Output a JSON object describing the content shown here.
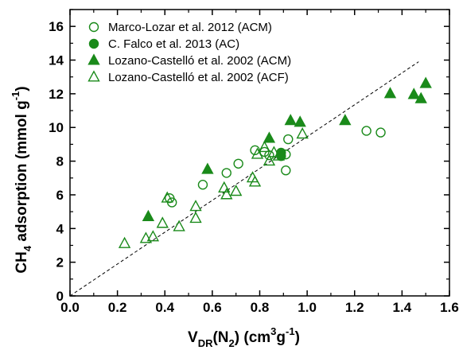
{
  "chart_data": {
    "type": "scatter",
    "title": "",
    "ylabel_parts": {
      "base": "CH",
      "sub": "4",
      "rest": " adsorption (mmol g",
      "sup": "-1",
      "end": ")"
    },
    "xlabel_parts": {
      "base": "V",
      "sub": "DR",
      "mid": "(N",
      "sub2": "2",
      "rest": ") (cm",
      "sup": "3",
      "g": "g",
      "sup2": "-1",
      "end": ")"
    },
    "xlim": [
      0.0,
      1.6
    ],
    "ylim": [
      0,
      17
    ],
    "x_ticks": [
      "0.0",
      "0.2",
      "0.4",
      "0.6",
      "0.8",
      "1.0",
      "1.2",
      "1.4",
      "1.6"
    ],
    "y_ticks": [
      "0",
      "2",
      "4",
      "6",
      "8",
      "10",
      "12",
      "14",
      "16"
    ],
    "x_tick_values": [
      0.0,
      0.2,
      0.4,
      0.6,
      0.8,
      1.0,
      1.2,
      1.4,
      1.6
    ],
    "y_tick_values": [
      0,
      2,
      4,
      6,
      8,
      10,
      12,
      14,
      16
    ],
    "grid": false,
    "legend_position": "top-left",
    "reference_line": {
      "style": "dashed",
      "x": [
        0.0,
        1.47
      ],
      "y": [
        0.0,
        13.9
      ]
    },
    "series": [
      {
        "name": "Marco-Lozar et al. 2012 (ACM)",
        "marker": "circle-open",
        "color": "#1a8a1a",
        "x": [
          0.42,
          0.43,
          0.56,
          0.66,
          0.71,
          0.78,
          0.82,
          0.84,
          0.91,
          0.91,
          0.92,
          1.25,
          1.31
        ],
        "y": [
          5.8,
          5.55,
          6.6,
          7.3,
          7.85,
          8.65,
          8.55,
          8.35,
          8.4,
          7.45,
          9.3,
          9.8,
          9.7
        ]
      },
      {
        "name": "C. Falco et al. 2013 (AC)",
        "marker": "circle-filled",
        "color": "#1a8a1a",
        "x": [
          0.89,
          0.89
        ],
        "y": [
          8.5,
          8.3
        ]
      },
      {
        "name": "Lozano-Castelló et al. 2002 (ACM)",
        "marker": "triangle-filled",
        "color": "#1a8a1a",
        "x": [
          0.33,
          0.58,
          0.84,
          0.93,
          0.97,
          1.16,
          1.35,
          1.45,
          1.48,
          1.5
        ],
        "y": [
          4.7,
          7.5,
          9.35,
          10.4,
          10.3,
          10.4,
          12.0,
          11.95,
          11.7,
          12.6
        ]
      },
      {
        "name": "Lozano-Castelló et al. 2002 (ACF)",
        "marker": "triangle-open",
        "color": "#1a8a1a",
        "x": [
          0.23,
          0.32,
          0.35,
          0.39,
          0.41,
          0.46,
          0.53,
          0.53,
          0.65,
          0.66,
          0.7,
          0.77,
          0.78,
          0.79,
          0.82,
          0.84,
          0.86,
          0.88,
          0.98
        ],
        "y": [
          3.1,
          3.4,
          3.5,
          4.3,
          5.8,
          4.1,
          5.3,
          4.6,
          6.4,
          6.0,
          6.2,
          7.0,
          6.75,
          8.4,
          8.8,
          8.0,
          8.5,
          8.3,
          9.6
        ]
      }
    ]
  }
}
